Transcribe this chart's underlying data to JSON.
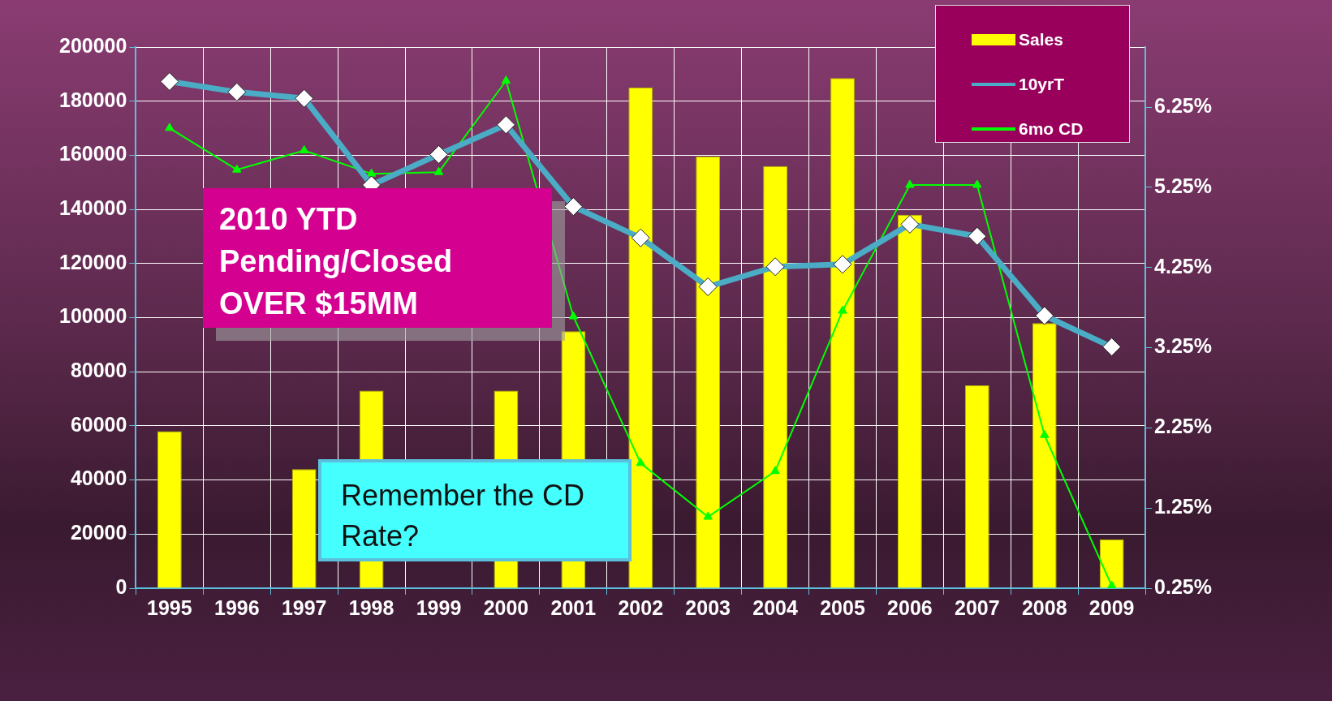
{
  "chart_data": {
    "type": "bar",
    "categories": [
      "1995",
      "1996",
      "1997",
      "1998",
      "1999",
      "2000",
      "2001",
      "2002",
      "2003",
      "2004",
      "2005",
      "2006",
      "2007",
      "2008",
      "2009"
    ],
    "series": [
      {
        "name": "Sales",
        "color": "#ffff00",
        "values": [
          58000,
          null,
          44000,
          73000,
          null,
          73000,
          95000,
          185000,
          159500,
          156000,
          188500,
          138000,
          75000,
          98000,
          18000
        ]
      },
      {
        "name": "10yrT",
        "type": "line",
        "axis": "y2",
        "color": "#4bacc6",
        "marker": "diamond",
        "values": [
          6.57,
          6.44,
          6.36,
          5.28,
          5.66,
          6.03,
          5.01,
          4.62,
          4.01,
          4.26,
          4.29,
          4.79,
          4.64,
          3.65,
          3.26
        ]
      },
      {
        "name": "6mo CD",
        "type": "line",
        "axis": "y2",
        "color": "#00ff00",
        "marker": "triangle",
        "values": [
          5.99,
          5.47,
          5.71,
          5.42,
          5.44,
          6.58,
          3.64,
          1.81,
          1.14,
          1.71,
          3.71,
          5.28,
          5.28,
          2.16,
          0.28
        ]
      }
    ],
    "ylim": [
      0,
      200000
    ],
    "yticks": [
      0,
      20000,
      40000,
      60000,
      80000,
      100000,
      120000,
      140000,
      160000,
      180000,
      200000
    ],
    "y2lim": [
      0.25,
      7.0
    ],
    "y2ticks": [
      {
        "value": 0.25,
        "label": "0.25%"
      },
      {
        "value": 1.25,
        "label": "1.25%"
      },
      {
        "value": 2.25,
        "label": "2.25%"
      },
      {
        "value": 3.25,
        "label": "3.25%"
      },
      {
        "value": 4.25,
        "label": "4.25%"
      },
      {
        "value": 5.25,
        "label": "5.25%"
      },
      {
        "value": 6.25,
        "label": "6.25%"
      }
    ],
    "grid": true,
    "legend": "top right",
    "annotations": [
      "2010 YTD Pending/Closed OVER $15MM",
      "Remember the CD Rate?"
    ]
  }
}
